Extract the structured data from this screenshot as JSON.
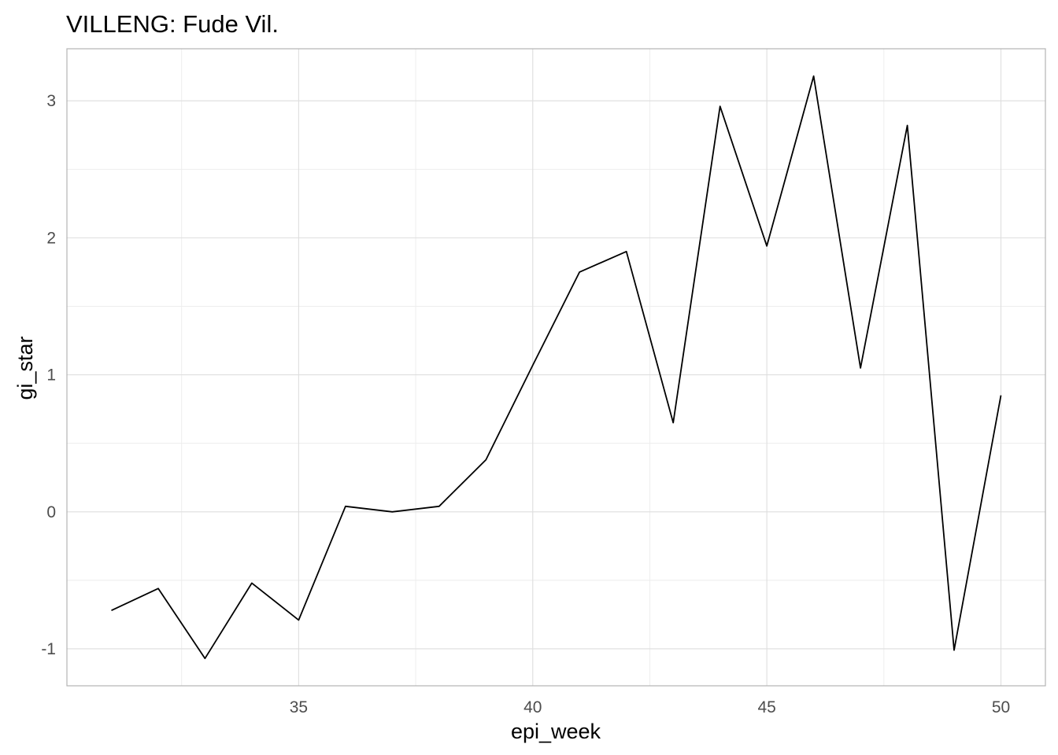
{
  "chart_data": {
    "type": "line",
    "title": "VILLENG: Fude Vil.",
    "xlabel": "epi_week",
    "ylabel": "gi_star",
    "xlim": [
      30.05,
      50.95
    ],
    "ylim": [
      -1.27,
      3.38
    ],
    "x_ticks": [
      35,
      40,
      45,
      50
    ],
    "x_tick_labels": [
      "35",
      "40",
      "45",
      "50"
    ],
    "y_ticks": [
      -1,
      0,
      1,
      2,
      3
    ],
    "y_tick_labels": [
      "-1",
      "0",
      "1",
      "2",
      "3"
    ],
    "grid": true,
    "legend": "none",
    "line_color": "#000000",
    "x": [
      31,
      32,
      33,
      34,
      35,
      36,
      37,
      38,
      39,
      40,
      41,
      42,
      43,
      44,
      45,
      46,
      47,
      48,
      49,
      50
    ],
    "series": [
      {
        "values": [
          -0.72,
          -0.56,
          -1.07,
          -0.52,
          -0.79,
          0.04,
          0.0,
          0.04,
          0.38,
          1.07,
          1.75,
          1.9,
          0.65,
          2.96,
          1.94,
          3.18,
          1.05,
          2.82,
          -1.01,
          0.85
        ]
      }
    ]
  }
}
